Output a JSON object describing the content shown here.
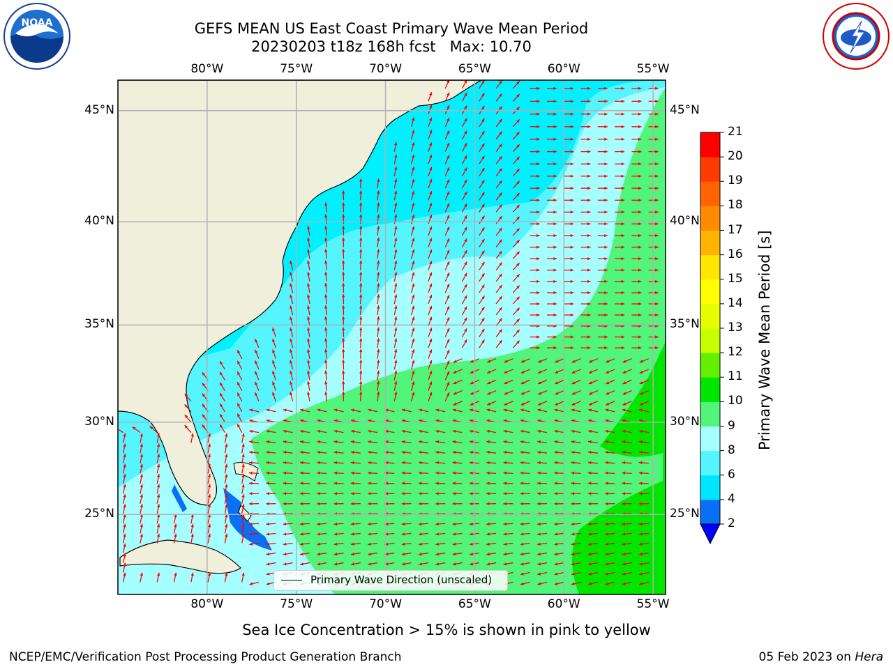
{
  "title": {
    "line1": "GEFS MEAN US East Coast Primary Wave Mean Period",
    "line2": "20230203 t18z 168h fcst   Max: 10.70"
  },
  "map": {
    "lon_range": [
      -85,
      -54.3
    ],
    "lat_range": [
      20.5,
      46.3
    ],
    "lon_ticks": [
      {
        "value": -80,
        "label": "80°W"
      },
      {
        "value": -75,
        "label": "75°W"
      },
      {
        "value": -70,
        "label": "70°W"
      },
      {
        "value": -65,
        "label": "65°W"
      },
      {
        "value": -60,
        "label": "60°W"
      },
      {
        "value": -55,
        "label": "55°W"
      }
    ],
    "lat_ticks": [
      {
        "value": 45,
        "label": "45°N"
      },
      {
        "value": 40,
        "label": "40°N"
      },
      {
        "value": 35,
        "label": "35°N"
      },
      {
        "value": 30,
        "label": "30°N"
      },
      {
        "value": 25,
        "label": "25°N"
      }
    ],
    "gridlines": true,
    "land_color": "#efefdc",
    "arrow_color": "#ff0000",
    "legend_text": "Primary Wave Direction (unscaled)",
    "legend_position": "lower center"
  },
  "colorbar": {
    "label": "Primary Wave Mean Period [s]",
    "ticks": [
      "2",
      "4",
      "6",
      "8",
      "9",
      "10",
      "11",
      "12",
      "13",
      "14",
      "15",
      "16",
      "17",
      "18",
      "19",
      "20",
      "21"
    ],
    "colors": [
      "#0a6ff5",
      "#00e6ff",
      "#55f5ff",
      "#a6ffff",
      "#50f57a",
      "#00e600",
      "#64f000",
      "#c8ff00",
      "#e6ff00",
      "#ffff00",
      "#ffe600",
      "#ffb400",
      "#ff8c00",
      "#ff6400",
      "#ff3c00",
      "#ff0000"
    ],
    "under_color": "#0000ff"
  },
  "footer": {
    "sea_ice_note": "Sea Ice Concentration > 15% is shown in pink to yellow",
    "credit": "NCEP/EMC/Verification Post Processing Product Generation Branch",
    "date": "05 Feb 2023 on",
    "machine": "Hera"
  },
  "logos": {
    "left": "noaa-logo",
    "left_text": "NOAA",
    "right": "nws-logo"
  }
}
